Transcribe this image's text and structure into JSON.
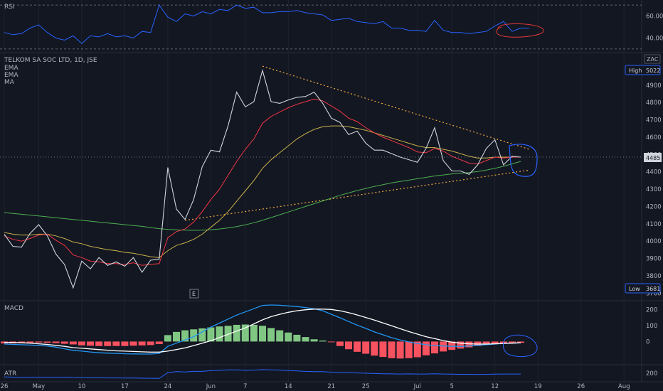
{
  "chart_data": [
    {
      "type": "line",
      "pane": "rsi",
      "label": "RSI",
      "ticks": [
        "60.00",
        "40.00"
      ],
      "levels": [
        70,
        30
      ],
      "ylim": [
        28,
        72
      ],
      "series": [
        {
          "color": "#2962ff",
          "x": [
            0,
            1,
            2,
            3,
            4,
            5,
            6,
            7,
            8,
            9,
            10,
            11,
            12,
            13,
            14,
            15,
            16,
            17,
            18,
            19,
            20,
            21,
            22,
            23,
            24,
            25,
            26,
            27,
            28,
            29,
            30,
            31,
            32,
            33,
            34,
            35,
            36,
            37,
            38,
            39,
            40,
            41,
            42,
            43,
            44,
            45,
            46,
            47,
            48,
            49,
            50,
            51,
            52,
            53,
            54,
            55,
            56,
            57,
            58,
            59,
            60,
            61
          ],
          "values": [
            45,
            43,
            44,
            49,
            52,
            45,
            40,
            38,
            42,
            35,
            42,
            41,
            44,
            41,
            42,
            40,
            46,
            45,
            70,
            59,
            55,
            62,
            60,
            64,
            62,
            66,
            65,
            70,
            67,
            68,
            63,
            63,
            64,
            64,
            65,
            63,
            62,
            61,
            56,
            57,
            58,
            55,
            54,
            53,
            55,
            49,
            49,
            47,
            47,
            46,
            56,
            47,
            45,
            45,
            44,
            45,
            46,
            51,
            55,
            46,
            49,
            49
          ]
        }
      ]
    },
    {
      "type": "line",
      "pane": "price",
      "title": "TELKOM SA SOC LTD, 1D, JSE",
      "legend": [
        "EMA",
        "EMA",
        "MA"
      ],
      "currency": "ZAC",
      "yticks": [
        "4900",
        "4800",
        "4700",
        "4600",
        "4500",
        "4400",
        "4300",
        "4200",
        "4100",
        "4000",
        "3900",
        "3800",
        "3700"
      ],
      "ylim": [
        3660,
        5080
      ],
      "high_label": "High",
      "high_value": "5022",
      "low_label": "Low",
      "low_value": "3681",
      "last_price": "4485",
      "earnings_marker": "E",
      "series": [
        {
          "name": "price",
          "color": "#d1d4dc",
          "values": [
            4040,
            3970,
            3965,
            4045,
            4095,
            4030,
            3925,
            3865,
            3730,
            3885,
            3840,
            3905,
            3860,
            3880,
            3855,
            3905,
            3820,
            3890,
            3895,
            4425,
            4185,
            4125,
            4240,
            4430,
            4525,
            4515,
            4665,
            4860,
            4775,
            4805,
            4985,
            4805,
            4795,
            4815,
            4830,
            4835,
            4860,
            4795,
            4710,
            4685,
            4615,
            4635,
            4565,
            4525,
            4525,
            4505,
            4485,
            4470,
            4455,
            4535,
            4655,
            4465,
            4405,
            4405,
            4385,
            4440,
            4535,
            4585,
            4440,
            4490,
            4485
          ]
        },
        {
          "name": "EMA fast",
          "color": "#f23645",
          "values": [
            4030,
            4010,
            4000,
            4015,
            4035,
            4040,
            4005,
            3975,
            3920,
            3905,
            3885,
            3880,
            3870,
            3870,
            3865,
            3875,
            3860,
            3865,
            3870,
            4020,
            4055,
            4070,
            4110,
            4170,
            4240,
            4300,
            4380,
            4460,
            4530,
            4590,
            4680,
            4720,
            4745,
            4770,
            4790,
            4805,
            4820,
            4810,
            4780,
            4750,
            4710,
            4690,
            4655,
            4625,
            4600,
            4580,
            4560,
            4540,
            4515,
            4510,
            4535,
            4520,
            4490,
            4470,
            4450,
            4445,
            4465,
            4485,
            4480,
            4485,
            4485
          ]
        },
        {
          "name": "EMA slow",
          "color": "#c9b04a",
          "values": [
            4050,
            4040,
            4035,
            4035,
            4040,
            4040,
            4030,
            4015,
            3995,
            3985,
            3970,
            3960,
            3950,
            3945,
            3935,
            3930,
            3920,
            3910,
            3905,
            3945,
            3975,
            3990,
            4010,
            4040,
            4080,
            4120,
            4170,
            4230,
            4290,
            4350,
            4420,
            4470,
            4510,
            4550,
            4590,
            4620,
            4645,
            4660,
            4665,
            4665,
            4660,
            4650,
            4640,
            4625,
            4610,
            4595,
            4580,
            4565,
            4550,
            4540,
            4540,
            4530,
            4520,
            4505,
            4490,
            4480,
            4480,
            4485,
            4485,
            4485,
            4485
          ]
        },
        {
          "name": "MA",
          "color": "#4caf50",
          "values": [
            4165,
            4160,
            4155,
            4150,
            4145,
            4140,
            4135,
            4130,
            4125,
            4120,
            4115,
            4110,
            4105,
            4100,
            4095,
            4090,
            4085,
            4078,
            4072,
            4068,
            4065,
            4063,
            4062,
            4063,
            4066,
            4070,
            4076,
            4084,
            4094,
            4106,
            4120,
            4136,
            4152,
            4168,
            4184,
            4200,
            4216,
            4232,
            4248,
            4264,
            4278,
            4292,
            4304,
            4316,
            4326,
            4336,
            4344,
            4352,
            4360,
            4368,
            4376,
            4382,
            4388,
            4392,
            4396,
            4402,
            4410,
            4420,
            4432,
            4446,
            4460
          ]
        }
      ],
      "trendlines": [
        {
          "color": "#f2a93b",
          "points": [
            [
              30,
              5010
            ],
            [
              61,
              4530
            ]
          ]
        },
        {
          "color": "#f2a93b",
          "points": [
            [
              21,
              4120
            ],
            [
              61,
              4410
            ]
          ]
        }
      ]
    },
    {
      "type": "bar",
      "pane": "macd",
      "label": "MACD",
      "yticks": [
        "200",
        "100",
        "0"
      ],
      "ylim": [
        -140,
        250
      ],
      "histogram": [
        -12,
        -12,
        -10,
        -8,
        -6,
        -8,
        -10,
        -14,
        -18,
        -24,
        -26,
        -28,
        -28,
        -28,
        -28,
        -26,
        -24,
        -22,
        -16,
        40,
        60,
        70,
        76,
        82,
        88,
        94,
        98,
        104,
        106,
        104,
        98,
        84,
        70,
        56,
        42,
        28,
        14,
        6,
        -4,
        -28,
        -48,
        -64,
        -76,
        -88,
        -96,
        -104,
        -106,
        -104,
        -98,
        -86,
        -74,
        -62,
        -52,
        -44,
        -36,
        -28,
        -20,
        -14,
        -12,
        -10,
        -8
      ],
      "series": [
        {
          "name": "MACD",
          "color": "#2196f3",
          "values": [
            -15,
            -18,
            -20,
            -22,
            -24,
            -28,
            -35,
            -45,
            -55,
            -60,
            -65,
            -70,
            -72,
            -74,
            -76,
            -77,
            -78,
            -78,
            -75,
            -30,
            -10,
            10,
            30,
            60,
            90,
            115,
            140,
            165,
            185,
            205,
            225,
            228,
            226,
            222,
            218,
            212,
            204,
            192,
            170,
            148,
            125,
            102,
            82,
            60,
            42,
            24,
            10,
            -2,
            -12,
            -20,
            -25,
            -28,
            -30,
            -30,
            -28,
            -24,
            -20,
            -16,
            -12,
            -10,
            -8
          ]
        },
        {
          "name": "Signal",
          "color": "#ffffff",
          "values": [
            -5,
            -6,
            -8,
            -10,
            -14,
            -18,
            -24,
            -30,
            -38,
            -42,
            -46,
            -50,
            -54,
            -58,
            -60,
            -62,
            -64,
            -66,
            -66,
            -60,
            -50,
            -40,
            -25,
            -10,
            5,
            25,
            45,
            65,
            85,
            110,
            135,
            155,
            170,
            182,
            192,
            198,
            202,
            202,
            200,
            192,
            180,
            166,
            150,
            134,
            116,
            98,
            80,
            62,
            46,
            30,
            18,
            6,
            -4,
            -10,
            -14,
            -16,
            -16,
            -14,
            -12,
            -10,
            -8
          ]
        }
      ]
    },
    {
      "type": "line",
      "pane": "atr",
      "label": "ATR",
      "yticks": [
        "200"
      ],
      "ylim": [
        140,
        260
      ],
      "series": [
        {
          "name": "ATR",
          "color": "#2962ff",
          "values": [
            172,
            170,
            168,
            168,
            170,
            170,
            169,
            170,
            168,
            166,
            166,
            165,
            164,
            164,
            163,
            163,
            162,
            161,
            160,
            205,
            212,
            210,
            214,
            214,
            220,
            222,
            226,
            226,
            222,
            224,
            228,
            226,
            224,
            220,
            218,
            214,
            212,
            212,
            208,
            206,
            204,
            202,
            200,
            198,
            196,
            195,
            194,
            195,
            194,
            194,
            196,
            194,
            193,
            192,
            192,
            191,
            192,
            193,
            194,
            194,
            194
          ]
        }
      ]
    }
  ],
  "xaxis": {
    "ticks": [
      {
        "label": "26",
        "i": 0
      },
      {
        "label": "May",
        "i": 4
      },
      {
        "label": "10",
        "i": 9
      },
      {
        "label": "17",
        "i": 14
      },
      {
        "label": "24",
        "i": 19
      },
      {
        "label": "Jun",
        "i": 24
      },
      {
        "label": "7",
        "i": 28
      },
      {
        "label": "14",
        "i": 33
      },
      {
        "label": "21",
        "i": 38
      },
      {
        "label": "25",
        "i": 42
      },
      {
        "label": "Jul",
        "i": 48
      },
      {
        "label": "5",
        "i": 52
      },
      {
        "label": "12",
        "i": 57
      },
      {
        "label": "19",
        "i": 62
      },
      {
        "label": "26",
        "i": 67
      },
      {
        "label": "Aug",
        "i": 72
      }
    ]
  }
}
